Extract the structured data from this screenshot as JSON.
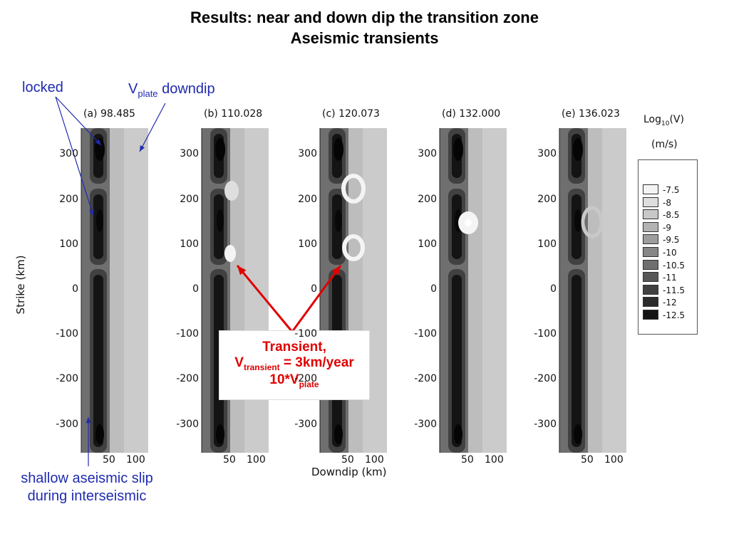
{
  "title_line1": "Results: near and down dip the transition zone",
  "title_line2": "Aseismic transients",
  "annotations": {
    "locked": "locked",
    "vplate_v": "V",
    "vplate_sub": "plate",
    "vplate_rest": " downdip",
    "shallow_line1": "shallow aseismic slip",
    "shallow_line2": "during interseismic"
  },
  "callout": {
    "line1": "Transient,",
    "line2_v": "V",
    "line2_sub": "transient",
    "line2_rest": " = 3km/year",
    "line3_main": "10*V",
    "line3_sub": "plate"
  },
  "axes": {
    "ylabel": "Strike (km)",
    "xlabel": "Downdip (km)",
    "yticks": [
      "300",
      "200",
      "100",
      "0",
      "-100",
      "-200",
      "-300"
    ],
    "xticks": [
      "50",
      "100"
    ]
  },
  "panels": [
    {
      "label": "(a) 98.485"
    },
    {
      "label": "(b) 110.028"
    },
    {
      "label": "(c) 120.073"
    },
    {
      "label": "(d) 132.000"
    },
    {
      "label": "(e) 136.023"
    }
  ],
  "legend": {
    "title_main": "Log",
    "title_sub": "10",
    "title_rest": "(V)",
    "units": "(m/s)",
    "levels": [
      "-7.5",
      "-8",
      "-8.5",
      "-9",
      "-9.5",
      "-10",
      "-10.5",
      "-11",
      "-11.5",
      "-12",
      "-12.5"
    ],
    "colors": [
      "#f4f4f4",
      "#dedede",
      "#c8c8c8",
      "#b3b3b3",
      "#9d9d9d",
      "#878787",
      "#6f6f6f",
      "#585858",
      "#414141",
      "#2b2b2b",
      "#141414"
    ]
  },
  "colors": {
    "annotation_blue": "#1f2bb0",
    "transient_red": "#e00000"
  }
}
